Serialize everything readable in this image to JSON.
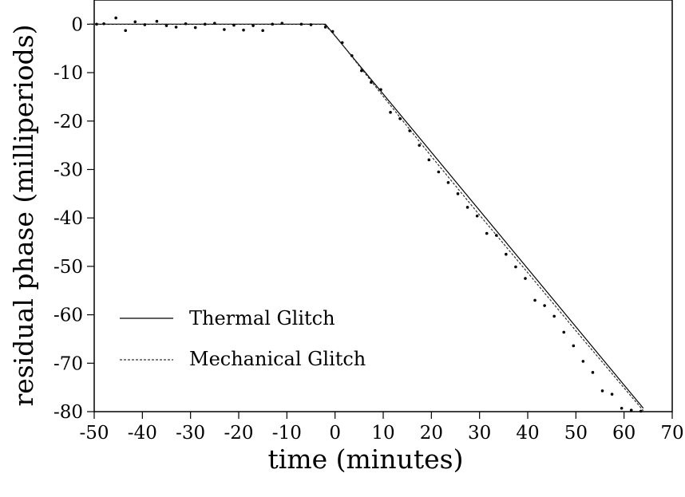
{
  "chart_data": {
    "type": "line",
    "title": "",
    "xlabel": "time (minutes)",
    "ylabel": "residual phase (milliperiods)",
    "xlim": [
      -50,
      70
    ],
    "ylim": [
      -80,
      5
    ],
    "xticks": [
      -50,
      -40,
      -30,
      -20,
      -10,
      0,
      10,
      20,
      30,
      40,
      50,
      60,
      70
    ],
    "yticks": [
      0,
      -10,
      -20,
      -30,
      -40,
      -50,
      -60,
      -70,
      -80
    ],
    "grid": false,
    "legend_position": "lower-left",
    "series": [
      {
        "name": "Thermal Glitch",
        "style": "solid",
        "color": "#000000",
        "x": [
          -51,
          -2,
          64
        ],
        "y": [
          0,
          0,
          -79.3
        ]
      },
      {
        "name": "Mechanical Glitch",
        "style": "dashed",
        "color": "#333333",
        "x": [
          -51,
          -2.3,
          0,
          10,
          20,
          30,
          40,
          50,
          60,
          64
        ],
        "y": [
          0,
          0,
          -2.3,
          -14.9,
          -27.3,
          -39.4,
          -51.3,
          -63.3,
          -75.1,
          -79.8
        ]
      }
    ],
    "points": {
      "x": [
        -49.5,
        -48,
        -45.5,
        -43.5,
        -41.5,
        -39.5,
        -37,
        -35,
        -33,
        -31,
        -29,
        -27,
        -25,
        -23,
        -21,
        -19,
        -17,
        -15,
        -13,
        -11,
        -7,
        -5,
        -2,
        -0.5,
        1.5,
        3.5,
        5.5,
        7.5,
        9.5,
        11.5,
        13.5,
        15.5,
        17.5,
        19.5,
        21.5,
        23.5,
        25.5,
        27.5,
        29.5,
        31.5,
        33.5,
        35.5,
        37.5,
        39.5,
        41.5,
        43.5,
        45.5,
        47.5,
        49.5,
        51.5,
        53.5,
        55.5,
        57.5,
        59.5,
        61.5,
        63.5
      ],
      "y": [
        0,
        0.1,
        1.3,
        -1.3,
        0.5,
        -0.1,
        0.6,
        -0.3,
        -0.6,
        0.1,
        -0.7,
        0,
        0.2,
        -1.1,
        -0.2,
        -1.2,
        -0.3,
        -1.3,
        0,
        0.2,
        0,
        -0.1,
        -0.6,
        -1.5,
        -3.8,
        -6.5,
        -9.6,
        -12,
        -13.5,
        -18.2,
        -19.5,
        -22,
        -25,
        -28,
        -30.5,
        -32.7,
        -35,
        -37.8,
        -39.6,
        -43.2,
        -43.6,
        -47.5,
        -50.1,
        -52.5,
        -57,
        -58.1,
        -60.3,
        -63.6,
        -66.4,
        -69.6,
        -71.9,
        -75.7,
        -76.4,
        -79.3,
        -79.7,
        -79.9
      ]
    }
  }
}
